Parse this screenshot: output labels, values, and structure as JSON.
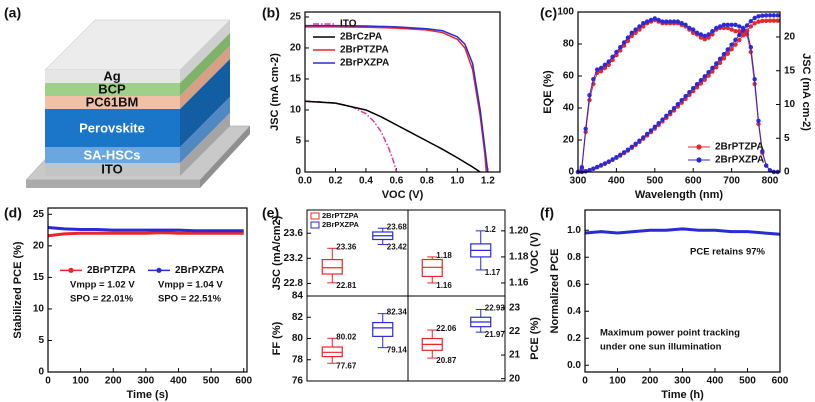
{
  "device": {
    "label": "(a)",
    "layers": [
      "Ag",
      "BCP",
      "PC61BM",
      "Perovskite",
      "SA-HSCs",
      "ITO"
    ]
  },
  "chart_data": [
    {
      "type": "line",
      "label": "(b)",
      "xlabel": "VOC (V)",
      "ylabel": "JSC (mA cm-2)",
      "xlim": [
        0,
        1.28
      ],
      "ylim": [
        0,
        25.8
      ],
      "xticks": [
        {
          "value": 0,
          "label": "0.0"
        },
        0.2,
        0.4,
        0.6,
        0.8,
        {
          "value": 1,
          "label": "1.0"
        },
        1.2
      ],
      "yticks": [
        0,
        5,
        10,
        15,
        20,
        25
      ],
      "legend": "upper left",
      "series": [
        {
          "name": "ITO",
          "color": "#e0389c",
          "dash": "dashdot",
          "x": [
            0,
            0.1,
            0.2,
            0.3,
            0.4,
            0.45,
            0.5,
            0.55,
            0.58,
            0.6
          ],
          "values": [
            11.4,
            11.3,
            11.1,
            10.6,
            9.4,
            8.2,
            6.5,
            3.8,
            1.8,
            0
          ]
        },
        {
          "name": "2BrCzPA",
          "color": "#000000",
          "dash": "solid",
          "x": [
            0,
            0.2,
            0.4,
            0.5,
            0.6,
            0.7,
            0.8,
            0.9,
            1.0,
            1.1,
            1.15
          ],
          "values": [
            11.4,
            11.1,
            10.0,
            8.9,
            7.6,
            6.3,
            5.0,
            3.7,
            2.3,
            0.8,
            0
          ]
        },
        {
          "name": "2BrPTZPA",
          "color": "#e8262b",
          "dash": "solid",
          "x": [
            0,
            0.2,
            0.4,
            0.6,
            0.8,
            0.9,
            1.0,
            1.05,
            1.1,
            1.15,
            1.18,
            1.19
          ],
          "values": [
            23.4,
            23.4,
            23.35,
            23.2,
            22.9,
            22.5,
            21.4,
            20.0,
            16.5,
            9,
            3,
            0
          ]
        },
        {
          "name": "2BrPXZPA",
          "color": "#2a2ad6",
          "dash": "solid",
          "x": [
            0,
            0.2,
            0.4,
            0.6,
            0.8,
            0.9,
            1.0,
            1.05,
            1.1,
            1.15,
            1.18,
            1.2
          ],
          "values": [
            23.6,
            23.6,
            23.55,
            23.4,
            23.1,
            22.8,
            21.8,
            20.6,
            17.5,
            10,
            4,
            0
          ]
        }
      ]
    },
    {
      "type": "line",
      "label": "(c)",
      "xlabel": "Wavelength (nm)",
      "ylabel": "EQE (%)",
      "y2label": "JSC (mA cm-2)",
      "xlim": [
        300,
        826
      ],
      "ylim": [
        0,
        100
      ],
      "y2lim": [
        0,
        23.7
      ],
      "xticks": [
        300,
        400,
        500,
        600,
        700,
        800
      ],
      "yticks": [
        0,
        20,
        40,
        60,
        80,
        100
      ],
      "y2ticks": [
        0,
        5,
        10,
        15,
        20
      ],
      "legend": "lower right",
      "markers": true,
      "x": [
        300,
        310,
        320,
        330,
        340,
        350,
        360,
        370,
        380,
        390,
        400,
        410,
        420,
        430,
        440,
        450,
        460,
        470,
        480,
        490,
        500,
        510,
        520,
        530,
        540,
        550,
        560,
        570,
        580,
        590,
        600,
        610,
        620,
        630,
        640,
        650,
        660,
        670,
        680,
        690,
        700,
        710,
        720,
        730,
        740,
        750,
        760,
        770,
        780,
        790,
        800,
        810,
        820
      ],
      "series": [
        {
          "name": "2BrPTZPA",
          "color": "#e8262b",
          "values": [
            0,
            2,
            25,
            45,
            55,
            62,
            63,
            65,
            67,
            70,
            73,
            76,
            79,
            82,
            85,
            87,
            89,
            91,
            93,
            94,
            95,
            94,
            93,
            93,
            93,
            93,
            93,
            92,
            91,
            89,
            87,
            86,
            84,
            83,
            84,
            86,
            89,
            90,
            90,
            90,
            89,
            88,
            88,
            87,
            86,
            75,
            55,
            30,
            12,
            4,
            1,
            0,
            0
          ]
        },
        {
          "name": "2BrPXZPA",
          "color": "#2a2ad6",
          "values": [
            0,
            3,
            27,
            48,
            58,
            64,
            65,
            67,
            69,
            72,
            75,
            78,
            81,
            84,
            87,
            89,
            91,
            93,
            94,
            95,
            96,
            95,
            94,
            94,
            94,
            94,
            94,
            93,
            92,
            90,
            89,
            87,
            86,
            85,
            86,
            88,
            90,
            91,
            92,
            92,
            92,
            92,
            91,
            90,
            88,
            78,
            58,
            32,
            13,
            4,
            1,
            0,
            0
          ]
        },
        {
          "color": "#e8262b",
          "axis": "y2",
          "values": [
            0,
            0.01,
            0.1,
            0.26,
            0.47,
            0.71,
            0.96,
            1.22,
            1.49,
            1.79,
            2.1,
            2.44,
            2.8,
            3.18,
            3.59,
            4.01,
            4.46,
            4.93,
            5.42,
            5.92,
            6.44,
            6.97,
            7.49,
            8.02,
            8.57,
            9.12,
            9.69,
            10.26,
            10.83,
            11.41,
            11.98,
            12.55,
            13.11,
            13.68,
            14.27,
            14.88,
            15.52,
            16.18,
            16.84,
            17.52,
            18.19,
            18.87,
            19.55,
            20.25,
            20.95,
            21.56,
            22.02,
            22.27,
            22.37,
            22.4,
            22.41,
            22.41,
            22.41
          ]
        },
        {
          "color": "#2a2ad6",
          "axis": "y2",
          "values": [
            0,
            0.01,
            0.11,
            0.28,
            0.49,
            0.74,
            1.0,
            1.27,
            1.55,
            1.86,
            2.19,
            2.54,
            2.91,
            3.31,
            3.73,
            4.17,
            4.63,
            5.12,
            5.63,
            6.15,
            6.69,
            7.23,
            7.77,
            8.32,
            8.88,
            9.45,
            10.04,
            10.63,
            11.22,
            11.82,
            12.41,
            13.0,
            13.59,
            14.18,
            14.79,
            15.42,
            16.08,
            16.76,
            17.45,
            18.15,
            18.86,
            19.57,
            20.28,
            20.99,
            21.7,
            22.33,
            22.81,
            23.06,
            23.16,
            23.19,
            23.2,
            23.2,
            23.2
          ]
        }
      ]
    },
    {
      "type": "line",
      "label": "(d)",
      "xlabel": "Time (s)",
      "ylabel": "Stabilized PCE (%)",
      "xlim": [
        0,
        610
      ],
      "ylim": [
        0,
        26
      ],
      "xticks": [
        0,
        100,
        200,
        300,
        400,
        500,
        600
      ],
      "yticks": [
        0,
        5,
        10,
        15,
        20,
        25
      ],
      "legend": "center",
      "x": [
        0,
        50,
        100,
        150,
        200,
        250,
        300,
        350,
        400,
        450,
        500,
        550,
        600
      ],
      "series": [
        {
          "name": "2BrPTZPA",
          "color": "#e8262b",
          "values": [
            21.6,
            21.9,
            22.0,
            22.0,
            22.0,
            22.0,
            22.0,
            22.1,
            22.0,
            22.0,
            22.0,
            22.0,
            22.0
          ]
        },
        {
          "name": "2BrPXZPA",
          "color": "#2a2ad6",
          "values": [
            22.9,
            22.7,
            22.6,
            22.6,
            22.5,
            22.5,
            22.5,
            22.5,
            22.5,
            22.4,
            22.4,
            22.4,
            22.4
          ]
        }
      ],
      "annotations": [
        "Vmpp = 1.02 V",
        "SPO = 22.01%",
        "Vmpp = 1.04 V",
        "SPO = 22.51%"
      ]
    },
    {
      "type": "box",
      "label": "(e)",
      "ylabel": "JSC (mA/cm2)",
      "ylim": [
        22.6,
        23.97
      ],
      "yticks": [
        22.8,
        23.2,
        23.6
      ],
      "legend": "upper left",
      "series": [
        {
          "name": "2BrPTZPA",
          "color": "#e8262b",
          "min": 22.81,
          "q1": 22.95,
          "median": 23.05,
          "q3": 23.18,
          "max": 23.36
        },
        {
          "name": "2BrPXZPA",
          "color": "#2a2ad6",
          "min": 23.42,
          "q1": 23.5,
          "median": 23.56,
          "q3": 23.62,
          "max": 23.68
        }
      ]
    },
    {
      "type": "box",
      "ylabel": "VOC (V)",
      "ylim": [
        1.15,
        1.216
      ],
      "yticks": [
        1.16,
        1.18,
        {
          "value": 1.2,
          "label": "1.20"
        }
      ],
      "series": [
        {
          "color": "#e8262b",
          "min": 1.16,
          "q1": 1.165,
          "median": 1.172,
          "q3": 1.178,
          "max": 1.18
        },
        {
          "color": "#2a2ad6",
          "min": 1.17,
          "q1": 1.18,
          "median": 1.185,
          "q3": 1.19,
          "max": 1.2
        }
      ]
    },
    {
      "type": "box",
      "ylabel": "FF (%)",
      "ylim": [
        76,
        84
      ],
      "yticks": [
        76,
        78,
        80,
        82,
        84
      ],
      "series": [
        {
          "color": "#e8262b",
          "min": 77.67,
          "q1": 78.3,
          "median": 78.7,
          "q3": 79.2,
          "max": 80.02
        },
        {
          "color": "#2a2ad6",
          "min": 79.14,
          "q1": 80.2,
          "median": 81.0,
          "q3": 81.5,
          "max": 82.34
        }
      ]
    },
    {
      "type": "box",
      "ylabel": "PCE (%)",
      "ylim": [
        19.9,
        23.5
      ],
      "yticks": [
        20,
        21,
        22,
        23
      ],
      "series": [
        {
          "color": "#e8262b",
          "min": 20.87,
          "q1": 21.2,
          "median": 21.45,
          "q3": 21.7,
          "max": 22.06
        },
        {
          "color": "#2a2ad6",
          "min": 21.97,
          "q1": 22.2,
          "median": 22.4,
          "q3": 22.6,
          "max": 22.93
        }
      ]
    },
    {
      "type": "line",
      "label": "(f)",
      "xlabel": "Time (h)",
      "ylabel": "Normalized PCE",
      "xlim": [
        0,
        600
      ],
      "ylim": [
        -0.05,
        1.15
      ],
      "xticks": [
        0,
        100,
        200,
        300,
        400,
        500,
        600
      ],
      "yticks": [
        {
          "value": 0,
          "label": "0.0"
        },
        0.2,
        0.4,
        0.6,
        0.8,
        {
          "value": 1,
          "label": "1.0"
        }
      ],
      "x": [
        0,
        50,
        100,
        150,
        200,
        250,
        300,
        350,
        400,
        450,
        500,
        550,
        600
      ],
      "series": [
        {
          "color": "#2a2ad6",
          "values": [
            0.98,
            0.99,
            0.98,
            0.99,
            1.0,
            1.0,
            1.01,
            1.0,
            1.0,
            0.99,
            0.99,
            0.98,
            0.97
          ]
        }
      ],
      "annotations": [
        "PCE retains 97%",
        "Maximum power point tracking",
        "under one sun illumination"
      ]
    }
  ]
}
